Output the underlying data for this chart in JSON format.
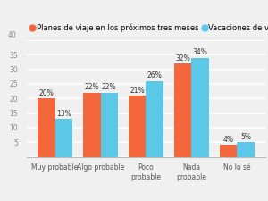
{
  "categories": [
    "Muy probable",
    "Algo probable",
    "Poco\nprobable",
    "Nada\nprobable",
    "No lo sé"
  ],
  "series1_label": "Planes de viaje en los próximos tres meses",
  "series2_label": "Vacaciones de verano",
  "series1_values": [
    20,
    22,
    21,
    32,
    4
  ],
  "series2_values": [
    13,
    22,
    26,
    34,
    5
  ],
  "series1_color": "#F4673C",
  "series2_color": "#5BC8E8",
  "ylim": [
    0,
    40
  ],
  "yticks": [
    0,
    5,
    10,
    15,
    20,
    25,
    30,
    35,
    40
  ],
  "ytick_labels": [
    "",
    "5",
    "10",
    "15",
    "20",
    "25",
    "30",
    "35",
    ""
  ],
  "background_color": "#f0f0f0",
  "grid_color": "#ffffff",
  "bar_width": 0.38,
  "tick_fontsize": 5.5,
  "legend_fontsize": 6.0,
  "value_fontsize": 5.5,
  "top_label": "40"
}
